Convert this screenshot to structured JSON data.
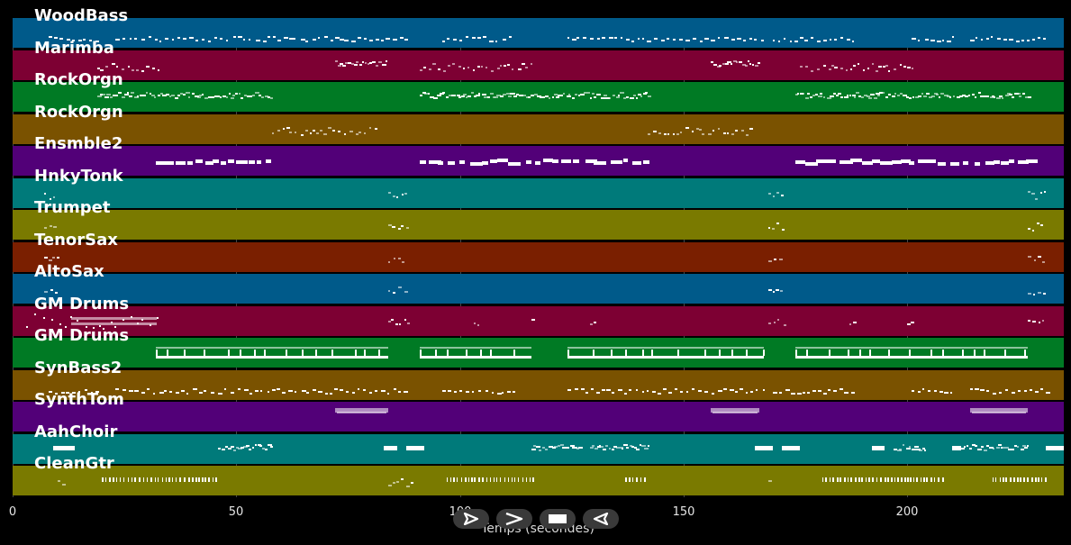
{
  "tracks": [
    {
      "label": "WoodBass",
      "color": "#005a8a",
      "style": "dots"
    },
    {
      "label": "Marimba",
      "color": "#7d0033",
      "style": "clusters"
    },
    {
      "label": "RockOrgn",
      "color": "#007a24",
      "style": "dense"
    },
    {
      "label": "RockOrgn",
      "color": "#7a5200",
      "style": "sparse"
    },
    {
      "label": "Ensmble2",
      "color": "#520078",
      "style": "blocks"
    },
    {
      "label": "HnkyTonk",
      "color": "#007a7a",
      "style": "hits"
    },
    {
      "label": "Trumpet",
      "color": "#7a7a00",
      "style": "hits"
    },
    {
      "label": "TenorSax",
      "color": "#7a1f00",
      "style": "hits"
    },
    {
      "label": "AltoSax",
      "color": "#005a8a",
      "style": "hits"
    },
    {
      "label": "GM Drums",
      "color": "#7d0033",
      "style": "drums1"
    },
    {
      "label": "GM Drums",
      "color": "#007a24",
      "style": "drums2"
    },
    {
      "label": "SynBass2",
      "color": "#7a5200",
      "style": "dots"
    },
    {
      "label": "SynthTom",
      "color": "#520078",
      "style": "long"
    },
    {
      "label": "AahChoir",
      "color": "#007a7a",
      "style": "chunks"
    },
    {
      "label": "CleanGtr",
      "color": "#7a7a00",
      "style": "strum"
    }
  ],
  "axis": {
    "min": 0,
    "max": 235,
    "ticks": [
      0,
      50,
      100,
      150,
      200
    ],
    "tick_labels": [
      "0",
      "50",
      "100",
      "150",
      "200"
    ],
    "title": "Temps (secondes)"
  },
  "controls": [
    {
      "name": "play-icon"
    },
    {
      "name": "fast-forward-icon"
    },
    {
      "name": "stop-icon"
    },
    {
      "name": "rewind-icon"
    }
  ]
}
